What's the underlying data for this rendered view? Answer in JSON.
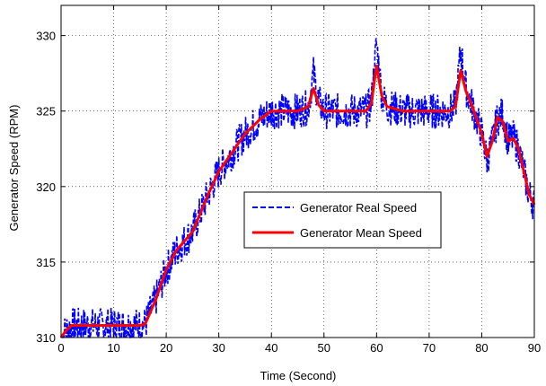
{
  "chart_data": {
    "type": "line",
    "title": "",
    "xlabel": "Time (Second)",
    "ylabel": "Generator Speed (RPM)",
    "xlim": [
      0,
      90
    ],
    "ylim": [
      310,
      332
    ],
    "xticks": [
      0,
      10,
      20,
      30,
      40,
      50,
      60,
      70,
      80,
      90
    ],
    "yticks": [
      310,
      315,
      320,
      325,
      330
    ],
    "grid": true,
    "legend_position": "center-right",
    "series": [
      {
        "name": "Generator Real Speed",
        "style": "dashed",
        "color": "#0000ff",
        "noise_amplitude_rpm": 1.2,
        "x": [
          0,
          1,
          2,
          5,
          10,
          15,
          16,
          18,
          20,
          22,
          25,
          28,
          30,
          32,
          35,
          38,
          40,
          42,
          45,
          47,
          48,
          49,
          50,
          55,
          58,
          59,
          60,
          61,
          62,
          65,
          70,
          74,
          75,
          76,
          77,
          78,
          79,
          80,
          81,
          82,
          83,
          84,
          85,
          86,
          87,
          88,
          89,
          90
        ],
        "y": [
          310,
          310.5,
          310.8,
          310.8,
          310.8,
          310.8,
          310.9,
          312.5,
          314.5,
          315.8,
          317,
          319.5,
          321,
          322,
          323.5,
          324.5,
          325,
          325,
          325,
          325.3,
          327.5,
          325.6,
          325,
          325,
          325,
          325.5,
          329.5,
          326,
          325.3,
          325,
          325,
          325,
          325.3,
          329,
          326.5,
          325.5,
          324.5,
          323.5,
          321.8,
          323,
          324.5,
          324.8,
          323,
          323.2,
          322.5,
          321,
          319.5,
          318.8
        ]
      },
      {
        "name": "Generator Mean Speed",
        "style": "solid",
        "color": "#ff0000",
        "x": [
          0,
          1,
          2,
          5,
          10,
          15,
          16,
          18,
          20,
          22,
          25,
          28,
          30,
          32,
          35,
          38,
          40,
          42,
          45,
          47,
          48,
          49,
          50,
          55,
          58,
          59,
          60,
          61,
          62,
          65,
          70,
          74,
          75,
          76,
          77,
          78,
          79,
          80,
          81,
          82,
          83,
          84,
          85,
          86,
          87,
          88,
          89,
          90
        ],
        "y": [
          310,
          310.5,
          310.8,
          310.8,
          310.8,
          310.8,
          310.9,
          312.5,
          314.5,
          315.8,
          317,
          319.5,
          321,
          322,
          323.5,
          324.5,
          325,
          325,
          325,
          325.3,
          326.5,
          325.4,
          325,
          325,
          325,
          325.5,
          328,
          326,
          325.3,
          325,
          325,
          325,
          325.3,
          327.7,
          326.3,
          325.5,
          324.5,
          323.5,
          322,
          323,
          324.6,
          324.3,
          323,
          323.2,
          322.5,
          321,
          319.5,
          318.8
        ]
      }
    ]
  }
}
